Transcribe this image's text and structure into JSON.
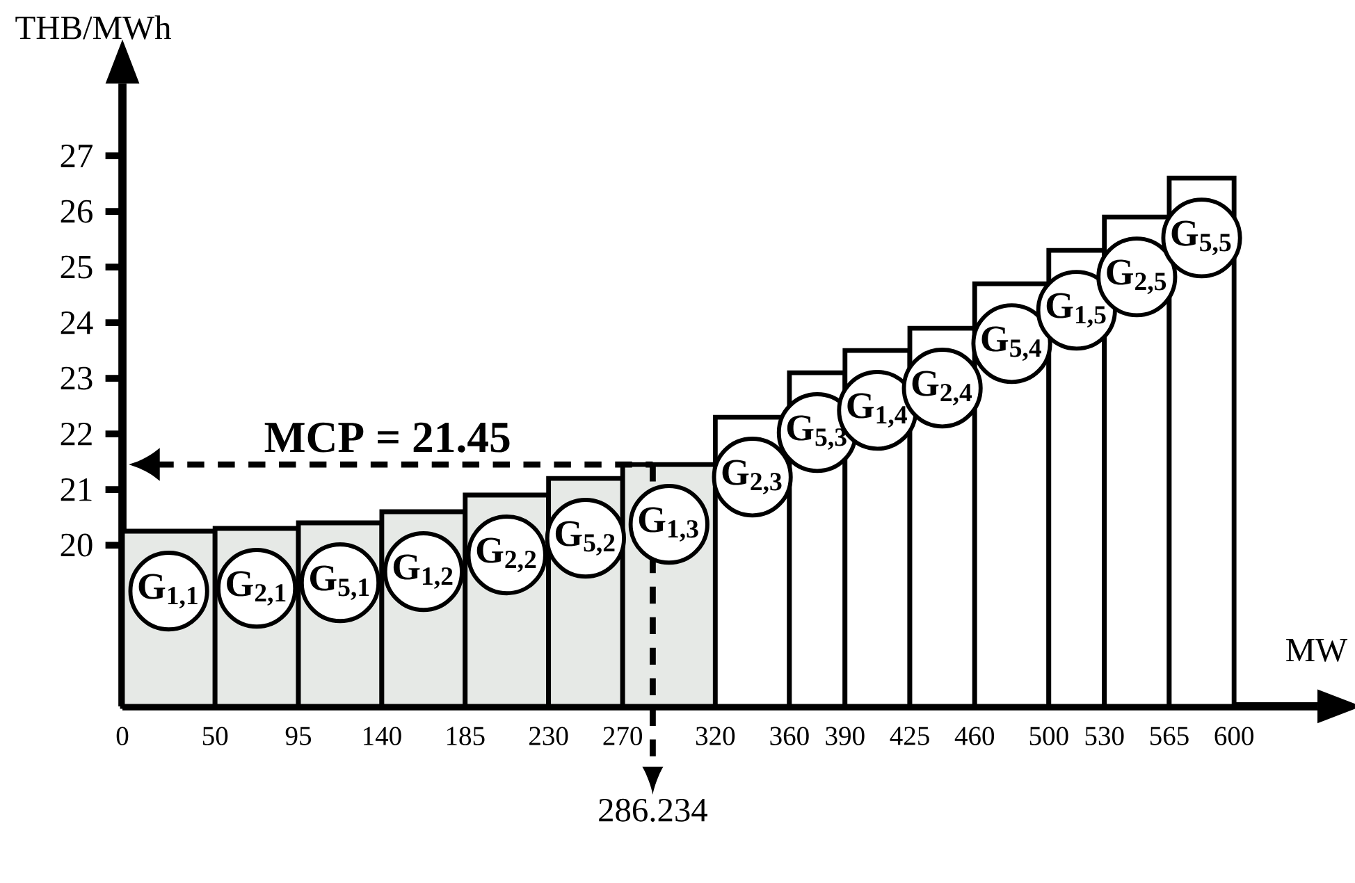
{
  "chart_data": {
    "type": "histogram",
    "xlabel": "MW",
    "ylabel": "THB/MWh",
    "bins": [
      0,
      50,
      95,
      140,
      185,
      230,
      270,
      320,
      360,
      390,
      425,
      460,
      500,
      530,
      565,
      600
    ],
    "values": [
      20.25,
      20.3,
      20.4,
      20.6,
      20.9,
      21.2,
      21.45,
      22.3,
      23.1,
      23.5,
      23.9,
      24.7,
      25.3,
      25.9,
      26.6
    ],
    "colors": [
      "#e6e9e6",
      "#e6e9e6",
      "#e6e9e6",
      "#e6e9e6",
      "#e6e9e6",
      "#e6e9e6",
      "#e6e9e6",
      "#ffffff",
      "#ffffff",
      "#ffffff",
      "#ffffff",
      "#ffffff",
      "#ffffff",
      "#ffffff",
      "#ffffff"
    ],
    "xlim": [
      0,
      645
    ],
    "ylim": [
      17.1,
      28.3
    ],
    "xticks": [
      0,
      50,
      95,
      140,
      185,
      230,
      270,
      320,
      360,
      390,
      425,
      460,
      500,
      530,
      565,
      600
    ],
    "yticks": [
      20,
      21,
      22,
      23,
      24,
      25,
      26,
      27
    ],
    "grid": false,
    "ref_lines": [
      {
        "axis": "y",
        "value": 21.45,
        "label": "MCP = 21.45",
        "line_style": "dashed"
      },
      {
        "axis": "x",
        "value": 286.234,
        "label": "286.234",
        "line_style": "dashed"
      }
    ],
    "annotations": [
      "G$_{1,1}$",
      "G$_{2,1}$",
      "G$_{5,1}$",
      "G$_{1,2}$",
      "G$_{2,2}$",
      "G$_{5,2}$",
      "G$_{1,3}$",
      "G$_{2,3}$",
      "G$_{5,3}$",
      "G$_{1,4}$",
      "G$_{2,4}$",
      "G$_{5,4}$",
      "G$_{1,5}$",
      "G$_{2,5}$",
      "G$_{5,5}$"
    ]
  }
}
